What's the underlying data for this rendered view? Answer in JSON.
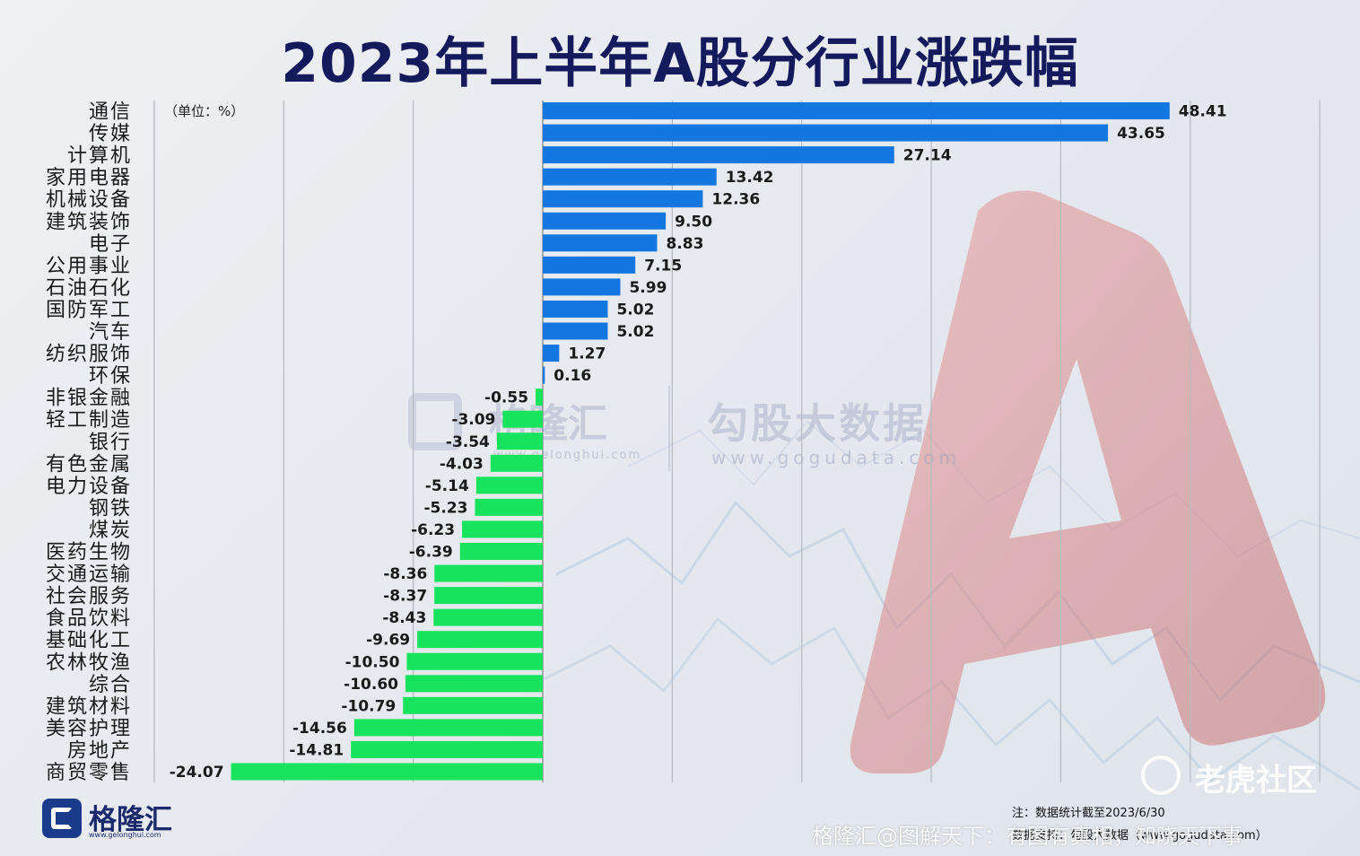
{
  "title": "2023年上半年A股分行业涨跌幅",
  "unit_label": "（单位：%）",
  "colors": {
    "positive": "#1277e1",
    "negative": "#17e35c",
    "title": "#141a5c",
    "grid": "#b9bcc2"
  },
  "chart_data": {
    "type": "bar",
    "orientation": "horizontal",
    "unit": "%",
    "xlim": [
      -30,
      60
    ],
    "grid": true,
    "categories": [
      "通信",
      "传媒",
      "计算机",
      "家用电器",
      "机械设备",
      "建筑装饰",
      "电子",
      "公用事业",
      "石油石化",
      "国防军工",
      "汽车",
      "纺织服饰",
      "环保",
      "非银金融",
      "轻工制造",
      "银行",
      "有色金属",
      "电力设备",
      "钢铁",
      "煤炭",
      "医药生物",
      "交通运输",
      "社会服务",
      "食品饮料",
      "基础化工",
      "农林牧渔",
      "综合",
      "建筑材料",
      "美容护理",
      "房地产",
      "商贸零售"
    ],
    "values": [
      48.41,
      43.65,
      27.14,
      13.42,
      12.36,
      9.5,
      8.83,
      7.15,
      5.99,
      5.02,
      5.02,
      1.27,
      0.16,
      -0.55,
      -3.09,
      -3.54,
      -4.03,
      -5.14,
      -5.23,
      -6.23,
      -6.39,
      -8.36,
      -8.37,
      -8.43,
      -9.69,
      -10.5,
      -10.6,
      -10.79,
      -14.56,
      -14.81,
      -24.07
    ],
    "labels": [
      "48.41",
      "43.65",
      "27.14",
      "13.42",
      "12.36",
      "9.50",
      "8.83",
      "7.15",
      "5.99",
      "5.02",
      "5.02",
      "1.27",
      "0.16",
      "-0.55",
      "-3.09",
      "-3.54",
      "-4.03",
      "-5.14",
      "-5.23",
      "-6.23",
      "-6.39",
      "-8.36",
      "-8.37",
      "-8.43",
      "-9.69",
      "-10.50",
      "-10.60",
      "-10.79",
      "-14.56",
      "-14.81",
      "-24.07"
    ]
  },
  "watermarks": {
    "center_brand": "格隆汇",
    "center_brand_url": "www.gelonghui.com",
    "center_data": "勾股大数据",
    "center_data_url": "www.gogudata.com",
    "tiger": "老虎社区",
    "bottom": "格隆汇@图解天下：有图有真相，知晓天下事"
  },
  "footer": {
    "logo_text": "格隆汇",
    "logo_url": "www.gelonghui.com",
    "note": "注：数据统计截至2023/6/30",
    "source": "数据支持：勾股大数据（www.gogudata.com）"
  }
}
